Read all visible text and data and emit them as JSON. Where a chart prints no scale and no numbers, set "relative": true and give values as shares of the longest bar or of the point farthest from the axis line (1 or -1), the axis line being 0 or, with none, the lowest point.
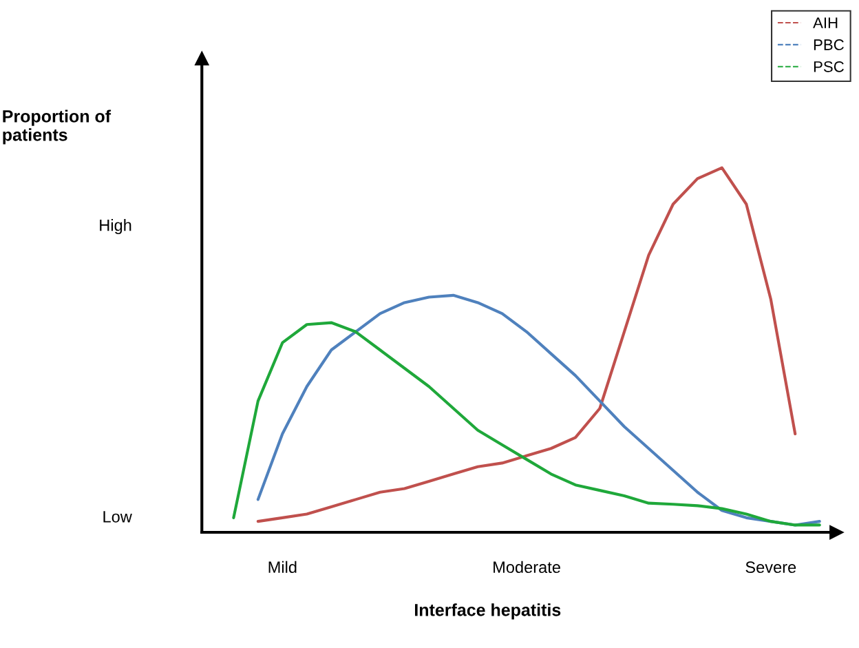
{
  "chart_data": {
    "type": "line",
    "xlabel": "Interface hepatitis",
    "categories": [
      null,
      null,
      null,
      "Mild",
      null,
      null,
      null,
      null,
      null,
      null,
      null,
      null,
      null,
      "Moderate",
      null,
      null,
      null,
      null,
      null,
      null,
      null,
      null,
      null,
      "Severe",
      null,
      null
    ],
    "relative": true,
    "annotations": [
      "Proportion of\npatients",
      "High",
      "Low"
    ],
    "grid": false,
    "legend": "top right",
    "marker": "none",
    "line_style": "solid",
    "series": [
      {
        "name": "AIH",
        "color": "#c0504d",
        "values": [
          null,
          null,
          0.03,
          0.04,
          0.05,
          0.07,
          0.09,
          0.11,
          0.12,
          0.14,
          0.16,
          0.18,
          0.19,
          0.21,
          0.23,
          0.26,
          0.34,
          0.55,
          0.76,
          0.9,
          0.97,
          1.0,
          0.9,
          0.64,
          0.27,
          null
        ]
      },
      {
        "name": "PBC",
        "color": "#4f81bd",
        "values": [
          null,
          null,
          0.09,
          0.27,
          0.4,
          0.5,
          0.55,
          0.6,
          0.63,
          0.645,
          0.65,
          0.63,
          0.6,
          0.55,
          0.49,
          0.43,
          0.36,
          0.29,
          0.23,
          0.17,
          0.11,
          0.06,
          0.04,
          0.03,
          0.02,
          0.03
        ]
      },
      {
        "name": "PSC",
        "color": "#1fa83a",
        "values": [
          null,
          0.04,
          0.36,
          0.52,
          0.57,
          0.575,
          0.55,
          0.5,
          0.45,
          0.4,
          0.34,
          0.28,
          0.24,
          0.2,
          0.16,
          0.13,
          0.115,
          0.1,
          0.08,
          0.077,
          0.073,
          0.065,
          0.05,
          0.03,
          0.02,
          0.02
        ]
      }
    ]
  }
}
